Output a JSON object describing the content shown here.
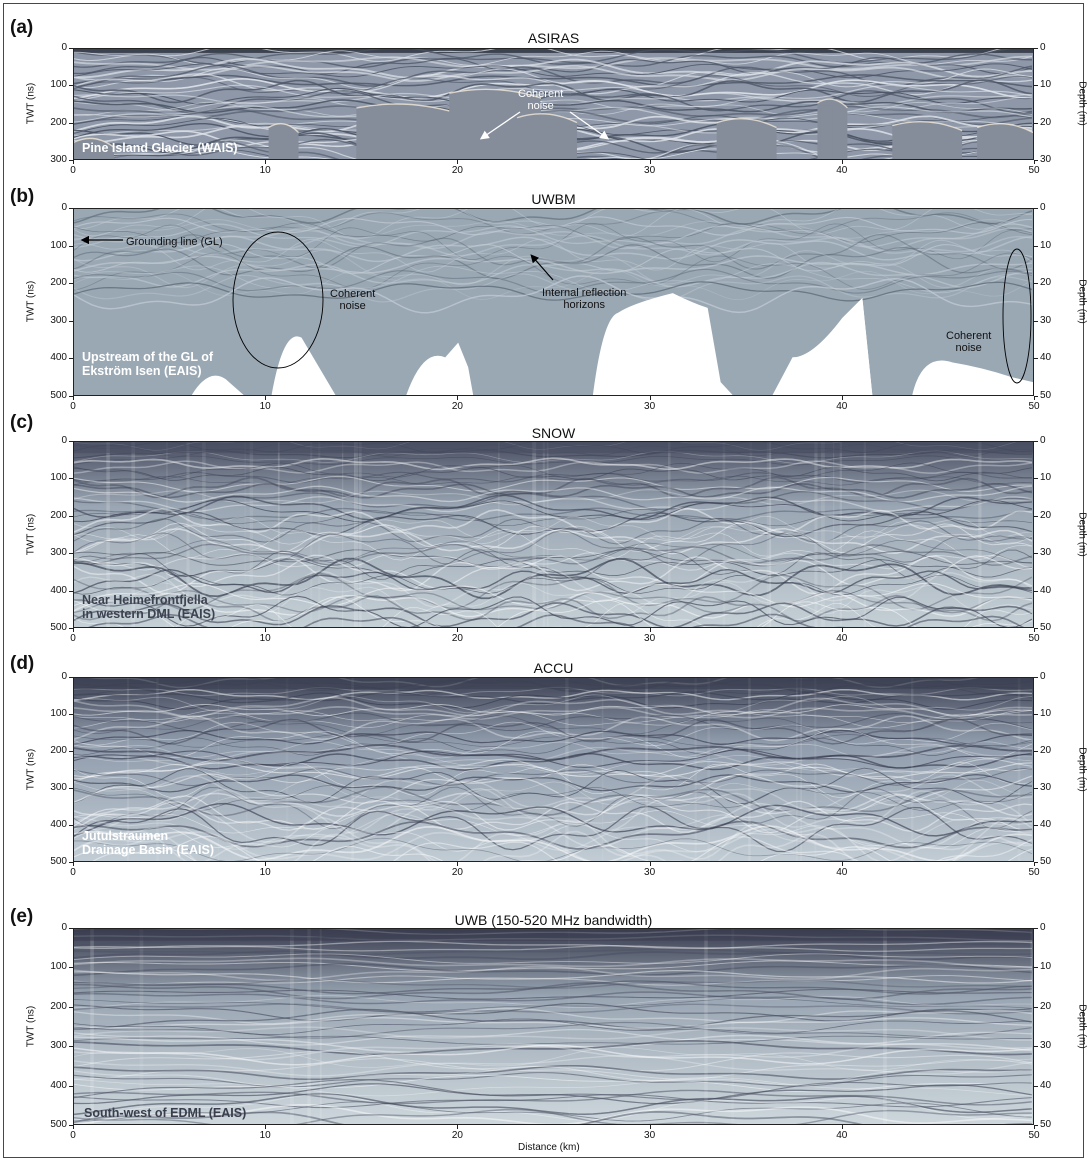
{
  "panels": [
    {
      "letter": "(a)",
      "title": "ASIRAS",
      "y_left_label": "TWT (ns)",
      "y_right_label": "Depth (m)",
      "y_left_ticks": [
        "0",
        "100",
        "200",
        "300"
      ],
      "y_right_ticks": [
        "0",
        "10",
        "20",
        "30"
      ],
      "x_ticks": [
        "0",
        "10",
        "20",
        "30",
        "40",
        "50"
      ],
      "location": "Pine Island Glacier (WAIS)",
      "annotations": [
        "Coherent\nnoise"
      ],
      "colors": {
        "bg": "#8e98a8",
        "band": "#4c5565",
        "light": "#dfe3ea"
      }
    },
    {
      "letter": "(b)",
      "title": "UWBM",
      "y_left_label": "TWT (ns)",
      "y_right_label": "Depth (m)",
      "y_left_ticks": [
        "0",
        "100",
        "200",
        "300",
        "400",
        "500"
      ],
      "y_right_ticks": [
        "0",
        "10",
        "20",
        "30",
        "40",
        "50"
      ],
      "x_ticks": [
        "0",
        "10",
        "20",
        "30",
        "40",
        "50"
      ],
      "location": "Upstream of the GL of\nEkström Isen (EAIS)",
      "annotations": [
        "Grounding line (GL)",
        "Coherent\nnoise",
        "Internal reflection\nhorizons",
        "Coherent\nnoise"
      ],
      "colors": {
        "bg": "#9aa8b4",
        "band": "#56626f",
        "light": "#c4cdd5"
      }
    },
    {
      "letter": "(c)",
      "title": "SNOW",
      "y_left_label": "TWT (ns)",
      "y_right_label": "Depth (m)",
      "y_left_ticks": [
        "0",
        "100",
        "200",
        "300",
        "400",
        "500"
      ],
      "y_right_ticks": [
        "0",
        "10",
        "20",
        "30",
        "40",
        "50"
      ],
      "x_ticks": [
        "0",
        "10",
        "20",
        "30",
        "40",
        "50"
      ],
      "location": "Near Heimefrontfjella\nin western DML (EAIS)",
      "annotations": [],
      "colors": {
        "top": "#4a4f62",
        "mid": "#9aa6b3",
        "bottom": "#c5d0d6"
      }
    },
    {
      "letter": "(d)",
      "title": "ACCU",
      "y_left_label": "TWT (ns)",
      "y_right_label": "Depth (m)",
      "y_left_ticks": [
        "0",
        "100",
        "200",
        "300",
        "400",
        "500"
      ],
      "y_right_ticks": [
        "0",
        "10",
        "20",
        "30",
        "40",
        "50"
      ],
      "x_ticks": [
        "0",
        "10",
        "20",
        "30",
        "40",
        "50"
      ],
      "location": "Jutulstraumen\nDrainage Basin (EAIS)",
      "annotations": [],
      "colors": {
        "top": "#3d4254",
        "mid": "#8f9bab",
        "bottom": "#c1ccd4"
      }
    },
    {
      "letter": "(e)",
      "title": "UWB (150-520 MHz bandwidth)",
      "y_left_label": "TWT (ns)",
      "y_right_label": "Depth (m)",
      "y_left_ticks": [
        "0",
        "100",
        "200",
        "300",
        "400",
        "500"
      ],
      "y_right_ticks": [
        "0",
        "10",
        "20",
        "30",
        "40",
        "50"
      ],
      "x_ticks": [
        "0",
        "10",
        "20",
        "30",
        "40",
        "50"
      ],
      "x_label": "Distance (km)",
      "location": "South-west of EDML (EAIS)",
      "annotations": [],
      "colors": {
        "top": "#3a3e50",
        "mid": "#9aa6b3",
        "bottom": "#cdd7dc"
      }
    }
  ]
}
